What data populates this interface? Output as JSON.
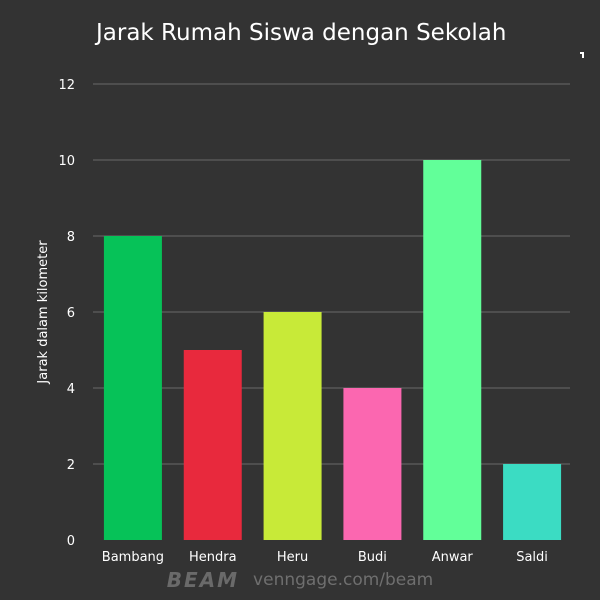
{
  "chart_data": {
    "type": "bar",
    "title": "Jarak Rumah Siswa dengan Sekolah",
    "xlabel": "",
    "ylabel": "Jarak dalam kilometer",
    "categories": [
      "Bambang",
      "Hendra",
      "Heru",
      "Budi",
      "Anwar",
      "Saldi"
    ],
    "values": [
      8,
      5,
      6,
      4,
      10,
      2
    ],
    "colors": [
      "#06c258",
      "#e8293d",
      "#c8ea38",
      "#fb67b0",
      "#62ff99",
      "#3bdcc3"
    ],
    "ylim": [
      0,
      12
    ],
    "yticks": [
      "0",
      "2",
      "4",
      "6",
      "8",
      "10",
      "12"
    ],
    "grid": true,
    "legend": "none"
  },
  "style": {
    "background": "#333333",
    "grid_color": "#6a6a6a",
    "text_color": "#ffffff"
  },
  "footer": {
    "brand": "BEAM",
    "url": "venngage.com/beam"
  }
}
